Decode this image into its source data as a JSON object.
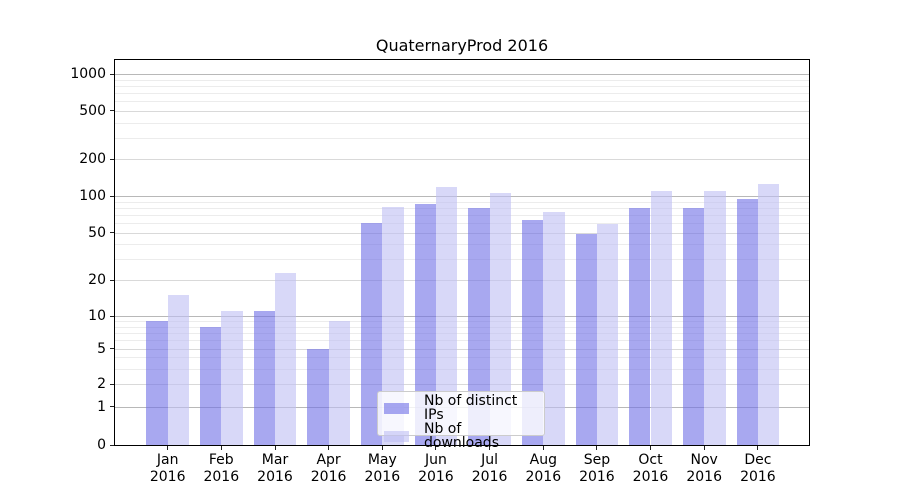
{
  "title": "QuaternaryProd 2016",
  "chart_data": {
    "type": "bar",
    "title": "QuaternaryProd 2016",
    "categories": [
      "Jan",
      "Feb",
      "Mar",
      "Apr",
      "May",
      "Jun",
      "Jul",
      "Aug",
      "Sep",
      "Oct",
      "Nov",
      "Dec"
    ],
    "year": "2016",
    "series": [
      {
        "name": "Nb of distinct IPs",
        "color": "#a8a8f0",
        "fill": "rgba(110,110,230,0.6)",
        "values": [
          9,
          8,
          11,
          5,
          60,
          86,
          80,
          64,
          49,
          79,
          80,
          95
        ]
      },
      {
        "name": "Nb of downloads",
        "color": "#d8d8f8",
        "fill": "rgba(190,190,243,0.6)",
        "values": [
          15,
          11,
          23,
          9,
          81,
          118,
          106,
          74,
          59,
          111,
          109,
          126
        ]
      }
    ],
    "yticks": [
      0,
      1,
      2,
      5,
      10,
      20,
      50,
      100,
      200,
      500,
      1000
    ],
    "yscale": "symlog",
    "ylim": [
      0,
      1300
    ],
    "grid": true,
    "legend_position": "lower center"
  }
}
